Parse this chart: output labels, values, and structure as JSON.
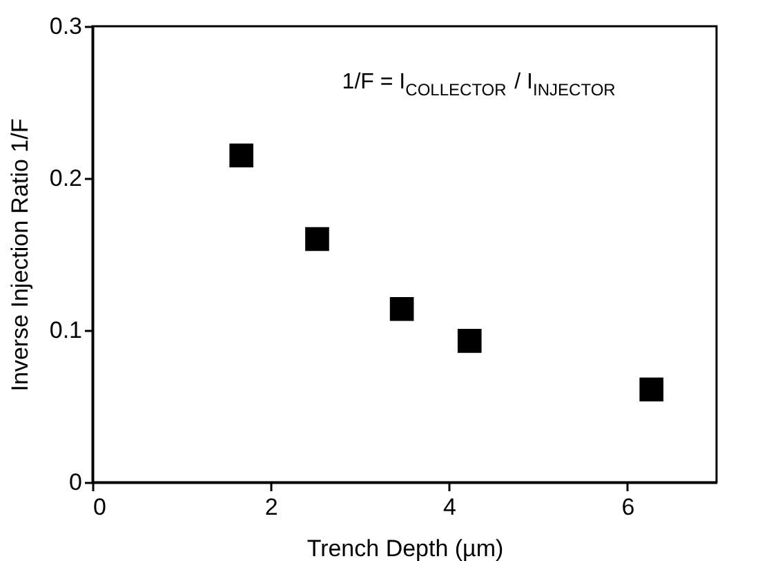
{
  "chart_data": {
    "type": "scatter",
    "xlabel": "Trench Depth (µm)",
    "ylabel": "Inverse Injection Ratio  1/F",
    "x": [
      1.67,
      2.52,
      3.47,
      4.23,
      6.27
    ],
    "series": [
      {
        "color": "#000000",
        "values": [
          0.215,
          0.16,
          0.114,
          0.093,
          0.061
        ]
      }
    ],
    "marker": "square",
    "xlim": [
      0,
      7
    ],
    "xticks": [
      0,
      2,
      4,
      6
    ],
    "ylim": [
      0,
      0.3
    ],
    "yticks": [
      0,
      0.1,
      0.2,
      0.3
    ],
    "annotations": [
      "1/F = I$_{COLLECTOR}$ / I$_{INJECTOR}$"
    ],
    "grid": false
  }
}
